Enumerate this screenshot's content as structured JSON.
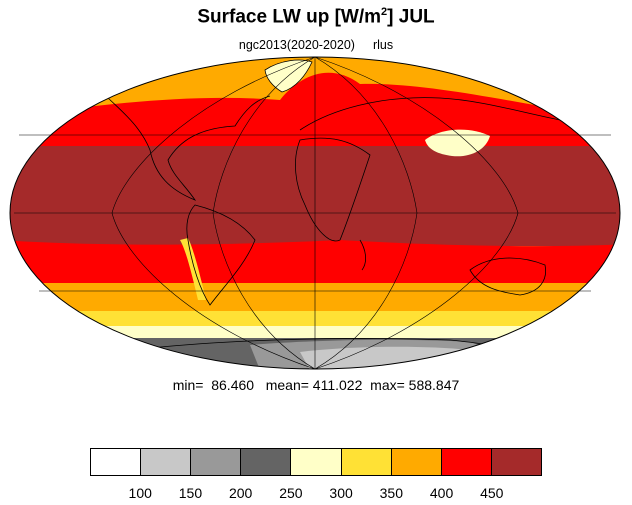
{
  "title": {
    "main": "Surface LW up [W/m",
    "sup": "2",
    "tail": "]  JUL"
  },
  "subtitle": {
    "run": "ngc2013(2020-2020)",
    "var": "rlus"
  },
  "stats": {
    "text": "min=  86.460   mean= 411.022  max= 588.847"
  },
  "colorbar": {
    "colors": [
      "#ffffff",
      "#c8c8c8",
      "#999999",
      "#646464",
      "#ffffc8",
      "#ffe135",
      "#ffaa00",
      "#ff0000",
      "#a52a2a"
    ],
    "ticks": [
      "100",
      "150",
      "200",
      "250",
      "300",
      "350",
      "400",
      "450"
    ]
  },
  "map_colors": {
    "ocean_tropics": "#a52a2a",
    "band_400": "#ff0000",
    "band_350": "#ffaa00",
    "band_300": "#ffe135",
    "band_250": "#ffffc8",
    "ice_dark": "#646464",
    "ice_mid": "#999999",
    "ice_light": "#c8c8c8",
    "snow": "#ffffff"
  }
}
